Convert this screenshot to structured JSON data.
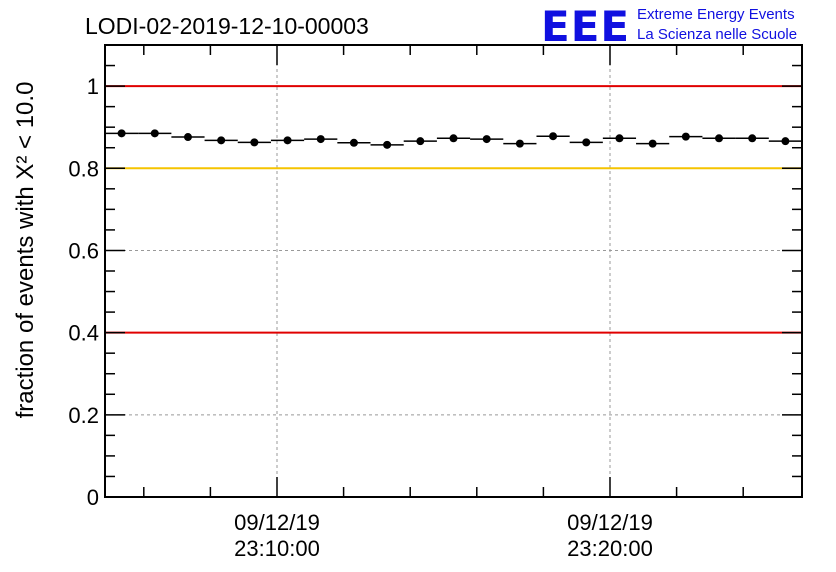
{
  "header": {
    "title": "LODI-02-2019-12-10-00003",
    "logo_mark": "EEE",
    "logo_line1": "Extreme Energy Events",
    "logo_line2": "La Scienza nelle Scuole",
    "logo_color": "#1010e0"
  },
  "chart_data": {
    "type": "scatter",
    "title": "LODI-02-2019-12-10-00003",
    "ylabel": "fraction of events with X² < 10.0",
    "xlabel": "",
    "ylim": [
      0,
      1.1
    ],
    "y_ticks": [
      "0",
      "0.2",
      "0.4",
      "0.6",
      "0.8",
      "1"
    ],
    "x_tick_labels": [
      {
        "date": "09/12/19",
        "time": "23:10:00"
      },
      {
        "date": "09/12/19",
        "time": "23:20:00"
      }
    ],
    "grid": true,
    "reference_lines": [
      {
        "y": 1.0,
        "color": "#e00000"
      },
      {
        "y": 0.8,
        "color": "#f5c400"
      },
      {
        "y": 0.4,
        "color": "#e00000"
      }
    ],
    "series": [
      {
        "marker_color": "#000000",
        "values": [
          0.885,
          0.885,
          0.876,
          0.868,
          0.863,
          0.868,
          0.871,
          0.862,
          0.857,
          0.866,
          0.873,
          0.871,
          0.86,
          0.878,
          0.863,
          0.873,
          0.86,
          0.877,
          0.873,
          0.873,
          0.866
        ]
      }
    ]
  }
}
